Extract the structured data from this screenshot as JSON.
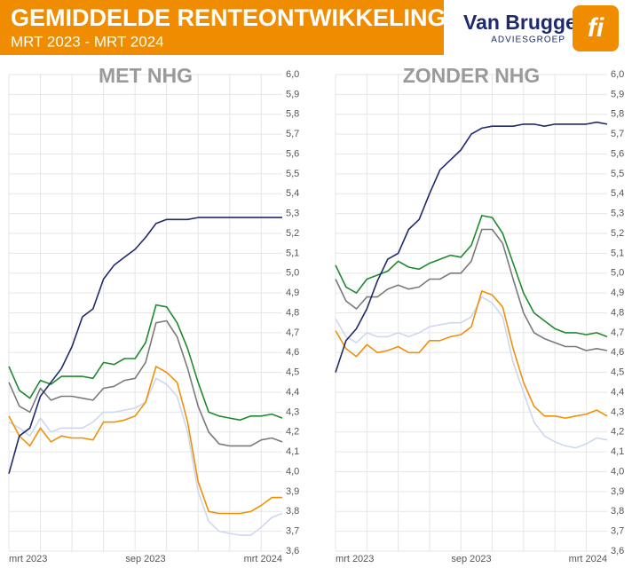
{
  "header": {
    "title": "GEMIDDELDE RENTEONTWIKKELING",
    "subtitle": "MRT 2023 - MRT 2024"
  },
  "logo": {
    "name": "Van Bruggen",
    "sub": "ADVIESGROEP",
    "icon": "fi"
  },
  "chart_data": [
    {
      "type": "line",
      "title": "MET NHG",
      "categories": [
        "mrt 2023",
        null,
        null,
        null,
        null,
        null,
        null,
        null,
        null,
        null,
        null,
        null,
        null,
        "sep 2023",
        null,
        null,
        null,
        null,
        null,
        null,
        null,
        null,
        null,
        null,
        null,
        null,
        "mrt 2024"
      ],
      "ylim": [
        3.6,
        6.0
      ],
      "grid": true,
      "yticks": [
        {
          "value": 3.6,
          "label": "3,6"
        },
        {
          "value": 3.7,
          "label": "3,7"
        },
        {
          "value": 3.8,
          "label": "3,8"
        },
        {
          "value": 3.9,
          "label": "3,9"
        },
        {
          "value": 4.0,
          "label": "4,0"
        },
        {
          "value": 4.1,
          "label": "4,1"
        },
        {
          "value": 4.2,
          "label": "4,2"
        },
        {
          "value": 4.3,
          "label": "4,3"
        },
        {
          "value": 4.4,
          "label": "4,4"
        },
        {
          "value": 4.5,
          "label": "4,5"
        },
        {
          "value": 4.6,
          "label": "4,6"
        },
        {
          "value": 4.7,
          "label": "4,7"
        },
        {
          "value": 4.8,
          "label": "4,8"
        },
        {
          "value": 4.9,
          "label": "4,9"
        },
        {
          "value": 5.0,
          "label": "5,0"
        },
        {
          "value": 5.1,
          "label": "5,1"
        },
        {
          "value": 5.2,
          "label": "5,2"
        },
        {
          "value": 5.3,
          "label": "5,3"
        },
        {
          "value": 5.4,
          "label": "5,4"
        },
        {
          "value": 5.5,
          "label": "5,5"
        },
        {
          "value": 5.6,
          "label": "5,6"
        },
        {
          "value": 5.7,
          "label": "5,7"
        },
        {
          "value": 5.8,
          "label": "5,8"
        },
        {
          "value": 5.9,
          "label": "5,9"
        },
        {
          "value": 6.0,
          "label": "6,0"
        }
      ],
      "series": [
        {
          "color": "#cdd7ef",
          "values": [
            4.25,
            4.22,
            4.18,
            4.27,
            4.2,
            4.22,
            4.22,
            4.22,
            4.25,
            4.3,
            4.3,
            4.31,
            4.32,
            4.35,
            4.47,
            4.44,
            4.38,
            4.2,
            3.9,
            3.75,
            3.7,
            3.69,
            3.68,
            3.68,
            3.72,
            3.77,
            3.79
          ]
        },
        {
          "color": "#f0900a",
          "values": [
            4.28,
            4.18,
            4.13,
            4.22,
            4.15,
            4.18,
            4.17,
            4.17,
            4.16,
            4.25,
            4.25,
            4.26,
            4.28,
            4.35,
            4.53,
            4.5,
            4.45,
            4.25,
            3.95,
            3.8,
            3.79,
            3.79,
            3.79,
            3.8,
            3.83,
            3.87,
            3.87
          ]
        },
        {
          "color": "#7a7a7a",
          "values": [
            4.45,
            4.33,
            4.3,
            4.42,
            4.36,
            4.38,
            4.38,
            4.37,
            4.36,
            4.42,
            4.43,
            4.46,
            4.47,
            4.55,
            4.75,
            4.76,
            4.68,
            4.52,
            4.33,
            4.2,
            4.14,
            4.13,
            4.13,
            4.13,
            4.16,
            4.17,
            4.15
          ]
        },
        {
          "color": "#1e8a2e",
          "values": [
            4.53,
            4.41,
            4.37,
            4.46,
            4.44,
            4.48,
            4.48,
            4.48,
            4.47,
            4.55,
            4.54,
            4.57,
            4.57,
            4.65,
            4.84,
            4.83,
            4.75,
            4.62,
            4.45,
            4.3,
            4.28,
            4.27,
            4.26,
            4.28,
            4.28,
            4.29,
            4.27
          ]
        },
        {
          "color": "#1f2a6b",
          "values": [
            3.99,
            4.18,
            4.22,
            4.38,
            4.45,
            4.52,
            4.63,
            4.78,
            4.82,
            4.97,
            5.04,
            5.08,
            5.12,
            5.18,
            5.25,
            5.27,
            5.27,
            5.27,
            5.28,
            5.28,
            5.28,
            5.28,
            5.28,
            5.28,
            5.28,
            5.28,
            5.28
          ]
        }
      ]
    },
    {
      "type": "line",
      "title": "ZONDER NHG",
      "categories": [
        "mrt 2023",
        null,
        null,
        null,
        null,
        null,
        null,
        null,
        null,
        null,
        null,
        null,
        null,
        "sep 2023",
        null,
        null,
        null,
        null,
        null,
        null,
        null,
        null,
        null,
        null,
        null,
        null,
        "mrt 2024"
      ],
      "ylim": [
        3.6,
        6.0
      ],
      "grid": true,
      "yticks": [
        {
          "value": 3.6,
          "label": "3,6"
        },
        {
          "value": 3.7,
          "label": "3,7"
        },
        {
          "value": 3.8,
          "label": "3,8"
        },
        {
          "value": 3.9,
          "label": "3,9"
        },
        {
          "value": 4.0,
          "label": "4,0"
        },
        {
          "value": 4.1,
          "label": "4,1"
        },
        {
          "value": 4.2,
          "label": "4,2"
        },
        {
          "value": 4.3,
          "label": "4,3"
        },
        {
          "value": 4.4,
          "label": "4,4"
        },
        {
          "value": 4.5,
          "label": "4,5"
        },
        {
          "value": 4.6,
          "label": "4,6"
        },
        {
          "value": 4.7,
          "label": "4,7"
        },
        {
          "value": 4.8,
          "label": "4,8"
        },
        {
          "value": 4.9,
          "label": "4,9"
        },
        {
          "value": 5.0,
          "label": "5,0"
        },
        {
          "value": 5.1,
          "label": "5,1"
        },
        {
          "value": 5.2,
          "label": "5,2"
        },
        {
          "value": 5.3,
          "label": "5,3"
        },
        {
          "value": 5.4,
          "label": "5,4"
        },
        {
          "value": 5.5,
          "label": "5,5"
        },
        {
          "value": 5.6,
          "label": "5,6"
        },
        {
          "value": 5.7,
          "label": "5,7"
        },
        {
          "value": 5.8,
          "label": "5,8"
        },
        {
          "value": 5.9,
          "label": "5,9"
        },
        {
          "value": 6.0,
          "label": "6,0"
        }
      ],
      "series": [
        {
          "color": "#cdd7ef",
          "values": [
            4.77,
            4.68,
            4.65,
            4.7,
            4.68,
            4.68,
            4.7,
            4.68,
            4.7,
            4.73,
            4.74,
            4.75,
            4.75,
            4.78,
            4.88,
            4.85,
            4.78,
            4.55,
            4.4,
            4.25,
            4.18,
            4.15,
            4.13,
            4.12,
            4.14,
            4.17,
            4.16
          ]
        },
        {
          "color": "#f0900a",
          "values": [
            4.71,
            4.62,
            4.58,
            4.64,
            4.6,
            4.61,
            4.63,
            4.6,
            4.6,
            4.66,
            4.66,
            4.68,
            4.69,
            4.73,
            4.91,
            4.89,
            4.83,
            4.62,
            4.45,
            4.33,
            4.28,
            4.28,
            4.27,
            4.28,
            4.29,
            4.31,
            4.28
          ]
        },
        {
          "color": "#7a7a7a",
          "values": [
            4.97,
            4.86,
            4.82,
            4.88,
            4.88,
            4.92,
            4.94,
            4.92,
            4.93,
            4.97,
            4.97,
            5.0,
            5.0,
            5.06,
            5.22,
            5.22,
            5.15,
            4.97,
            4.8,
            4.7,
            4.67,
            4.65,
            4.63,
            4.63,
            4.61,
            4.62,
            4.61
          ]
        },
        {
          "color": "#1e8a2e",
          "values": [
            5.04,
            4.93,
            4.9,
            4.97,
            4.99,
            5.01,
            5.06,
            5.03,
            5.02,
            5.05,
            5.07,
            5.09,
            5.08,
            5.14,
            5.29,
            5.28,
            5.2,
            5.05,
            4.9,
            4.8,
            4.76,
            4.72,
            4.7,
            4.7,
            4.69,
            4.7,
            4.68
          ]
        },
        {
          "color": "#1f2a6b",
          "values": [
            4.5,
            4.66,
            4.72,
            4.82,
            4.96,
            5.07,
            5.1,
            5.22,
            5.27,
            5.4,
            5.52,
            5.57,
            5.62,
            5.7,
            5.73,
            5.74,
            5.74,
            5.74,
            5.75,
            5.75,
            5.74,
            5.75,
            5.75,
            5.75,
            5.75,
            5.76,
            5.75
          ]
        }
      ]
    }
  ]
}
